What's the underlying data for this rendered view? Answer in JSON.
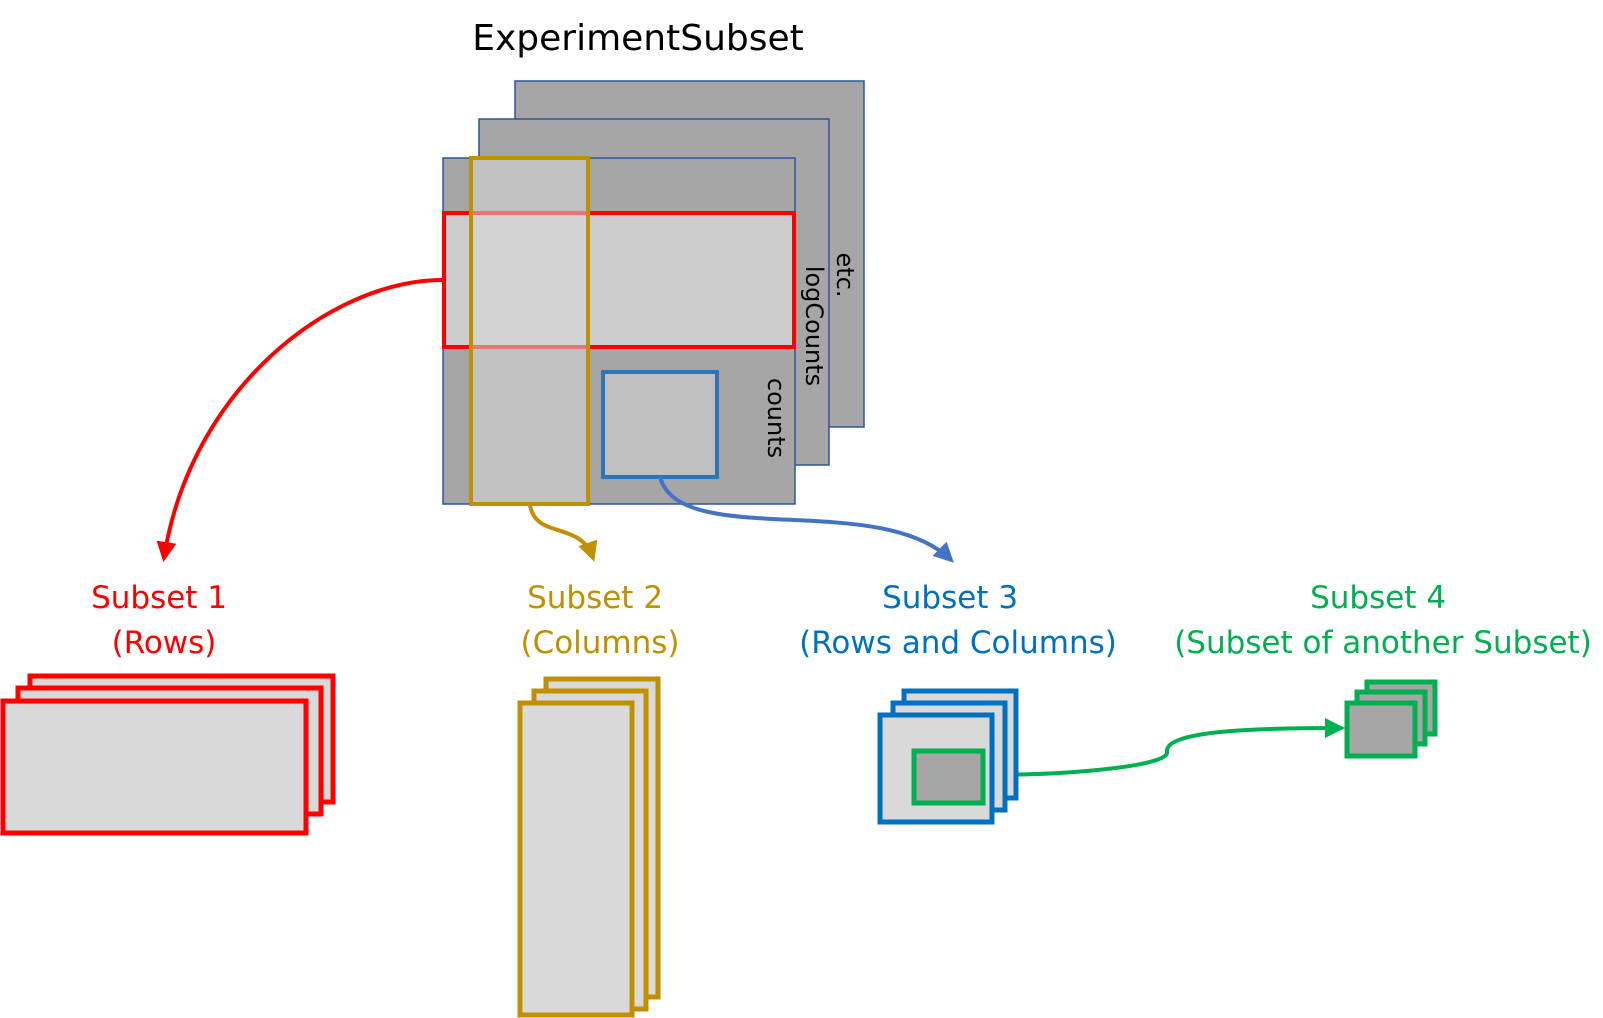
{
  "title": "ExperimentSubset",
  "layers": {
    "front": "counts",
    "middle": "logCounts",
    "back": "etc."
  },
  "subsets": [
    {
      "id": "subset1",
      "name": "Subset 1",
      "description": "(Rows)",
      "color": "#ff0000"
    },
    {
      "id": "subset2",
      "name": "Subset 2",
      "description": "(Columns)",
      "color": "#c09000"
    },
    {
      "id": "subset3",
      "name": "Subset 3",
      "description": "(Rows and Columns)",
      "color": "#0070c0"
    },
    {
      "id": "subset4",
      "name": "Subset 4",
      "description": "(Subset of another Subset)",
      "color": "#00b050"
    }
  ],
  "colors": {
    "matrix_fill": "#a6a6a6",
    "matrix_border": "#2f5597",
    "selection_fill": "#d9d9d9",
    "arrow_blue": "#4472c4"
  }
}
